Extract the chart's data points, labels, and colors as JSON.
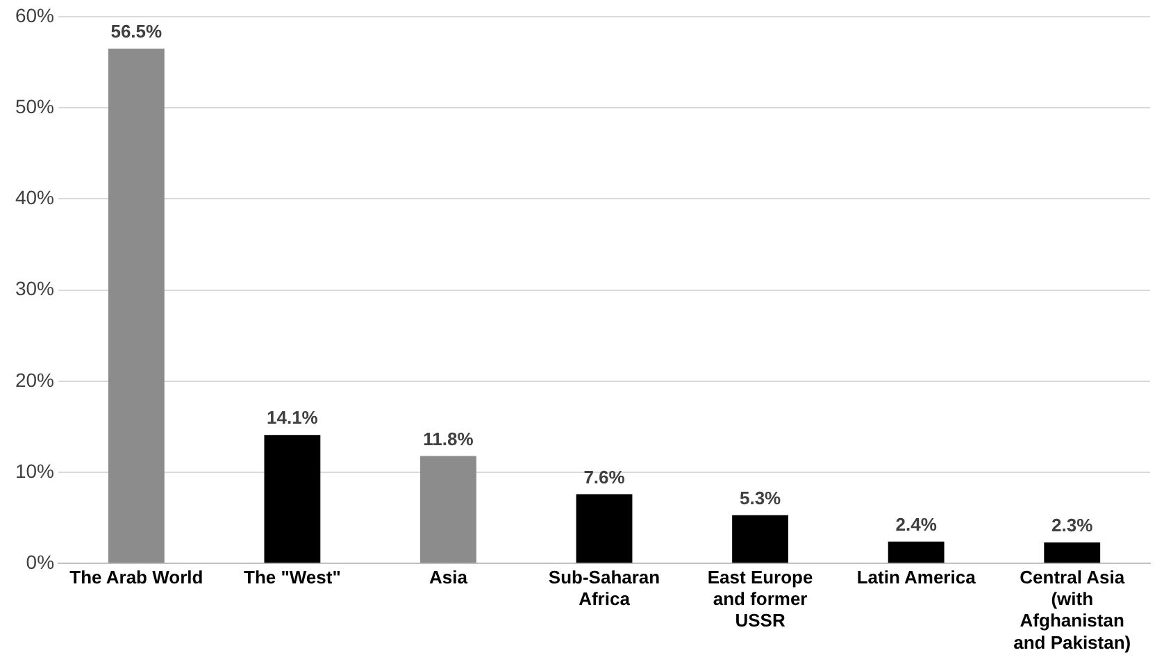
{
  "chart_data": {
    "type": "bar",
    "categories": [
      "The Arab World",
      "The \"West\"",
      "Asia",
      "Sub-Saharan Africa",
      "East Europe and former USSR",
      "Latin America",
      "Central Asia (with Afghanistan and Pakistan)"
    ],
    "values": [
      56.5,
      14.1,
      11.8,
      7.6,
      5.3,
      2.4,
      2.3
    ],
    "colors": [
      "#8c8c8c",
      "#000000",
      "#8c8c8c",
      "#000000",
      "#000000",
      "#000000",
      "#000000"
    ],
    "value_labels": [
      "56.5%",
      "14.1%",
      "11.8%",
      "7.6%",
      "5.3%",
      "2.4%",
      "2.3%"
    ],
    "ylim": [
      0,
      60
    ],
    "yticks": [
      {
        "value": 0,
        "label": "0%"
      },
      {
        "value": 10,
        "label": "10%"
      },
      {
        "value": 20,
        "label": "20%"
      },
      {
        "value": 30,
        "label": "30%"
      },
      {
        "value": 40,
        "label": "40%"
      },
      {
        "value": 50,
        "label": "50%"
      },
      {
        "value": 60,
        "label": "60%"
      }
    ],
    "grid": "y",
    "legend": false
  }
}
